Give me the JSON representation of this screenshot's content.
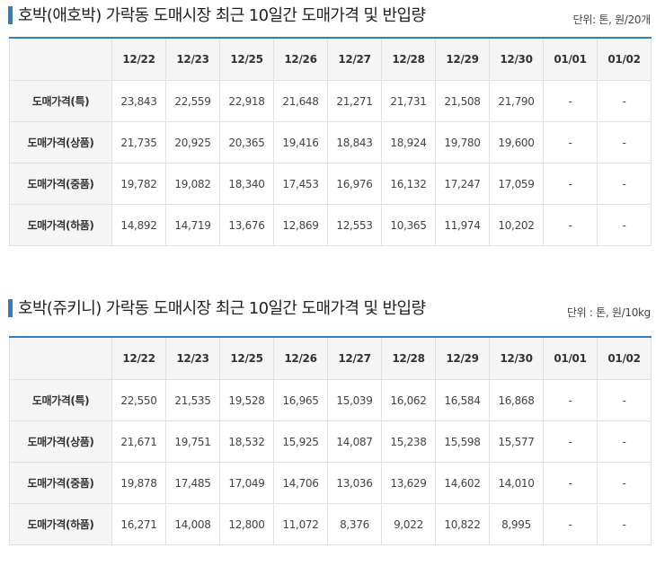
{
  "tables": [
    {
      "title": "호박(애호박) 가락동 도매시장 최근 10일간 도매가격 및 반입량",
      "unit": "단위: 톤, 원/20개",
      "header_label": "",
      "dates": [
        "12/22",
        "12/23",
        "12/25",
        "12/26",
        "12/27",
        "12/28",
        "12/29",
        "12/30",
        "01/01",
        "01/02"
      ],
      "rows": [
        {
          "label": "도매가격(특)",
          "values": [
            "23,843",
            "22,559",
            "22,918",
            "21,648",
            "21,271",
            "21,731",
            "21,508",
            "21,790",
            "-",
            "-"
          ]
        },
        {
          "label": "도매가격(상품)",
          "values": [
            "21,735",
            "20,925",
            "20,365",
            "19,416",
            "18,843",
            "18,924",
            "19,780",
            "19,600",
            "-",
            "-"
          ]
        },
        {
          "label": "도매가격(중품)",
          "values": [
            "19,782",
            "19,082",
            "18,340",
            "17,453",
            "16,976",
            "16,132",
            "17,247",
            "17,059",
            "-",
            "-"
          ]
        },
        {
          "label": "도매가격(하품)",
          "values": [
            "14,892",
            "14,719",
            "13,676",
            "12,869",
            "12,553",
            "10,365",
            "11,974",
            "10,202",
            "-",
            "-"
          ]
        }
      ]
    },
    {
      "title": "호박(쥬키니) 가락동 도매시장 최근 10일간 도매가격 및 반입량",
      "unit": "단위 : 톤, 원/10kg",
      "header_label": "",
      "dates": [
        "12/22",
        "12/23",
        "12/25",
        "12/26",
        "12/27",
        "12/28",
        "12/29",
        "12/30",
        "01/01",
        "01/02"
      ],
      "rows": [
        {
          "label": "도매가격(특)",
          "values": [
            "22,550",
            "21,535",
            "19,528",
            "16,965",
            "15,039",
            "16,062",
            "16,584",
            "16,868",
            "-",
            "-"
          ]
        },
        {
          "label": "도매가격(상품)",
          "values": [
            "21,671",
            "19,751",
            "18,532",
            "15,925",
            "14,087",
            "15,238",
            "15,598",
            "15,577",
            "-",
            "-"
          ]
        },
        {
          "label": "도매가격(중품)",
          "values": [
            "19,878",
            "17,485",
            "17,049",
            "14,706",
            "13,036",
            "13,629",
            "14,602",
            "14,010",
            "-",
            "-"
          ]
        },
        {
          "label": "도매가격(하품)",
          "values": [
            "16,271",
            "14,008",
            "12,800",
            "11,072",
            "8,376",
            "9,022",
            "10,822",
            "8,995",
            "-",
            "-"
          ]
        }
      ]
    }
  ],
  "colors": {
    "accent": "#2f7fb8",
    "header_bg": "#f5f5f5",
    "border": "#e1e1e1"
  }
}
